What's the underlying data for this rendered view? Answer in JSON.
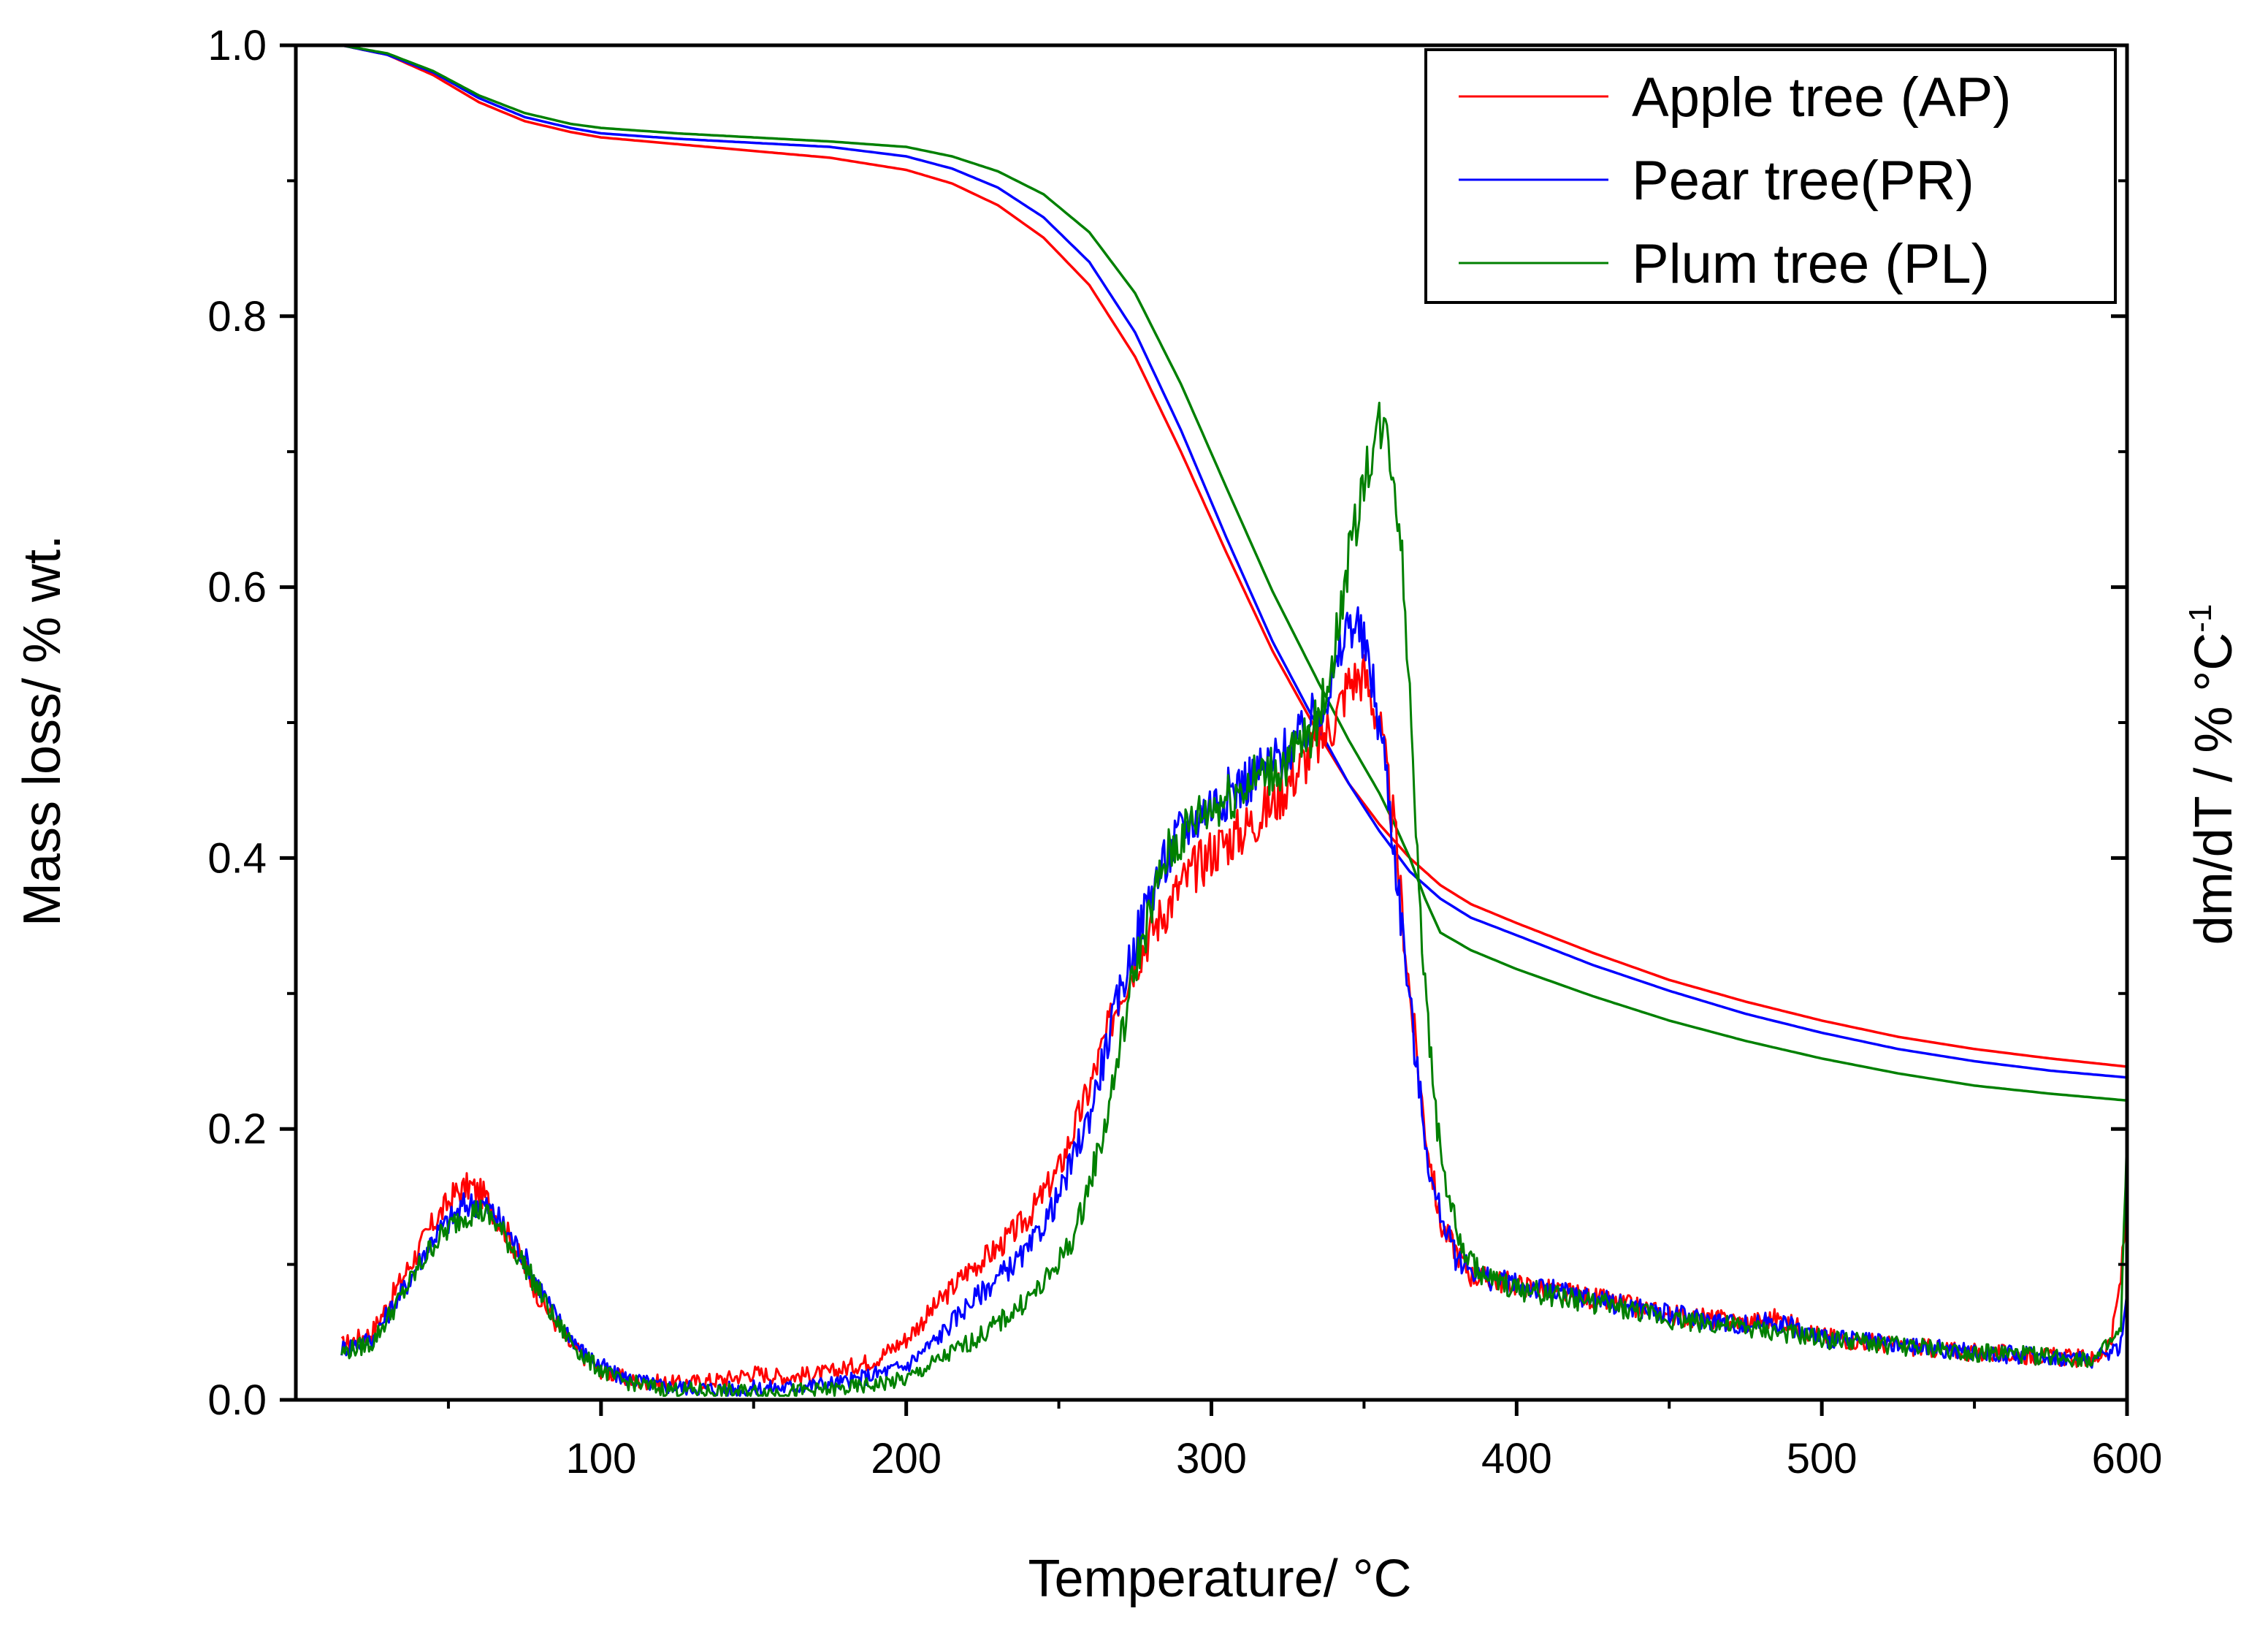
{
  "chart_data": {
    "type": "line",
    "xlabel": "Temperature/ °C",
    "ylabel_left": "Mass loss/ % wt.",
    "ylabel_right_main": "dm/dT / % °C",
    "ylabel_right_sup": "-1",
    "xlim": [
      0,
      600
    ],
    "ylim": [
      0,
      1.0
    ],
    "x_ticks": [
      100,
      200,
      300,
      400,
      500,
      600
    ],
    "y_ticks": [
      0.0,
      0.2,
      0.4,
      0.6,
      0.8,
      1.0
    ],
    "x_tick_labels": [
      "100",
      "200",
      "300",
      "400",
      "500",
      "600"
    ],
    "y_tick_labels": [
      "0.0",
      "0.2",
      "0.4",
      "0.6",
      "0.8",
      "1.0"
    ],
    "grid": false,
    "legend_position": "top-right",
    "series": [
      {
        "name": "Apple tree (AP)",
        "color": "#ff0000",
        "mass_curve": [
          [
            15,
            1.0
          ],
          [
            30,
            0.993
          ],
          [
            45,
            0.978
          ],
          [
            60,
            0.958
          ],
          [
            75,
            0.944
          ],
          [
            90,
            0.936
          ],
          [
            100,
            0.932
          ],
          [
            125,
            0.927
          ],
          [
            150,
            0.922
          ],
          [
            175,
            0.917
          ],
          [
            200,
            0.908
          ],
          [
            215,
            0.898
          ],
          [
            230,
            0.882
          ],
          [
            245,
            0.858
          ],
          [
            260,
            0.823
          ],
          [
            275,
            0.77
          ],
          [
            290,
            0.7
          ],
          [
            305,
            0.625
          ],
          [
            320,
            0.553
          ],
          [
            335,
            0.492
          ],
          [
            345,
            0.455
          ],
          [
            355,
            0.425
          ],
          [
            365,
            0.4
          ],
          [
            375,
            0.38
          ],
          [
            385,
            0.366
          ],
          [
            400,
            0.352
          ],
          [
            425,
            0.33
          ],
          [
            450,
            0.31
          ],
          [
            475,
            0.294
          ],
          [
            500,
            0.28
          ],
          [
            525,
            0.268
          ],
          [
            550,
            0.259
          ],
          [
            575,
            0.252
          ],
          [
            600,
            0.246
          ]
        ],
        "derivative_curve": [
          [
            15,
            0.04
          ],
          [
            25,
            0.05
          ],
          [
            35,
            0.09
          ],
          [
            45,
            0.13
          ],
          [
            52,
            0.152
          ],
          [
            57,
            0.158
          ],
          [
            62,
            0.15
          ],
          [
            70,
            0.12
          ],
          [
            80,
            0.075
          ],
          [
            90,
            0.04
          ],
          [
            100,
            0.022
          ],
          [
            110,
            0.014
          ],
          [
            125,
            0.012
          ],
          [
            140,
            0.015
          ],
          [
            150,
            0.02
          ],
          [
            160,
            0.017
          ],
          [
            175,
            0.02
          ],
          [
            190,
            0.03
          ],
          [
            200,
            0.045
          ],
          [
            210,
            0.07
          ],
          [
            220,
            0.095
          ],
          [
            230,
            0.112
          ],
          [
            240,
            0.135
          ],
          [
            250,
            0.17
          ],
          [
            260,
            0.23
          ],
          [
            270,
            0.3
          ],
          [
            280,
            0.345
          ],
          [
            290,
            0.38
          ],
          [
            300,
            0.405
          ],
          [
            310,
            0.42
          ],
          [
            320,
            0.44
          ],
          [
            330,
            0.47
          ],
          [
            340,
            0.5
          ],
          [
            345,
            0.53
          ],
          [
            350,
            0.535
          ],
          [
            355,
            0.5
          ],
          [
            360,
            0.42
          ],
          [
            365,
            0.3
          ],
          [
            370,
            0.2
          ],
          [
            375,
            0.13
          ],
          [
            385,
            0.092
          ],
          [
            400,
            0.085
          ],
          [
            425,
            0.075
          ],
          [
            450,
            0.063
          ],
          [
            475,
            0.057
          ],
          [
            485,
            0.06
          ],
          [
            500,
            0.047
          ],
          [
            525,
            0.04
          ],
          [
            550,
            0.035
          ],
          [
            575,
            0.032
          ],
          [
            590,
            0.03
          ],
          [
            595,
            0.045
          ],
          [
            598,
            0.09
          ],
          [
            600,
            0.15
          ]
        ]
      },
      {
        "name": "Pear tree(PR)",
        "color": "#0000ff",
        "mass_curve": [
          [
            15,
            1.0
          ],
          [
            30,
            0.993
          ],
          [
            45,
            0.98
          ],
          [
            60,
            0.961
          ],
          [
            75,
            0.947
          ],
          [
            90,
            0.939
          ],
          [
            100,
            0.935
          ],
          [
            125,
            0.931
          ],
          [
            150,
            0.928
          ],
          [
            175,
            0.925
          ],
          [
            200,
            0.918
          ],
          [
            215,
            0.909
          ],
          [
            230,
            0.895
          ],
          [
            245,
            0.873
          ],
          [
            260,
            0.84
          ],
          [
            275,
            0.788
          ],
          [
            290,
            0.716
          ],
          [
            305,
            0.636
          ],
          [
            320,
            0.56
          ],
          [
            335,
            0.496
          ],
          [
            345,
            0.455
          ],
          [
            355,
            0.42
          ],
          [
            365,
            0.39
          ],
          [
            375,
            0.37
          ],
          [
            385,
            0.356
          ],
          [
            400,
            0.343
          ],
          [
            425,
            0.321
          ],
          [
            450,
            0.302
          ],
          [
            475,
            0.285
          ],
          [
            500,
            0.271
          ],
          [
            525,
            0.259
          ],
          [
            550,
            0.25
          ],
          [
            575,
            0.243
          ],
          [
            600,
            0.238
          ]
        ],
        "derivative_curve": [
          [
            15,
            0.038
          ],
          [
            25,
            0.045
          ],
          [
            35,
            0.08
          ],
          [
            45,
            0.12
          ],
          [
            55,
            0.143
          ],
          [
            60,
            0.146
          ],
          [
            65,
            0.138
          ],
          [
            75,
            0.105
          ],
          [
            85,
            0.062
          ],
          [
            95,
            0.033
          ],
          [
            105,
            0.018
          ],
          [
            120,
            0.01
          ],
          [
            140,
            0.008
          ],
          [
            160,
            0.009
          ],
          [
            180,
            0.013
          ],
          [
            200,
            0.025
          ],
          [
            210,
            0.045
          ],
          [
            220,
            0.07
          ],
          [
            230,
            0.09
          ],
          [
            240,
            0.11
          ],
          [
            250,
            0.15
          ],
          [
            260,
            0.21
          ],
          [
            270,
            0.3
          ],
          [
            280,
            0.375
          ],
          [
            290,
            0.42
          ],
          [
            300,
            0.44
          ],
          [
            310,
            0.455
          ],
          [
            320,
            0.47
          ],
          [
            330,
            0.49
          ],
          [
            340,
            0.53
          ],
          [
            345,
            0.575
          ],
          [
            348,
            0.57
          ],
          [
            352,
            0.54
          ],
          [
            357,
            0.47
          ],
          [
            362,
            0.36
          ],
          [
            367,
            0.25
          ],
          [
            372,
            0.16
          ],
          [
            380,
            0.105
          ],
          [
            390,
            0.09
          ],
          [
            400,
            0.085
          ],
          [
            425,
            0.075
          ],
          [
            450,
            0.063
          ],
          [
            475,
            0.055
          ],
          [
            485,
            0.058
          ],
          [
            500,
            0.046
          ],
          [
            525,
            0.04
          ],
          [
            550,
            0.035
          ],
          [
            575,
            0.032
          ],
          [
            590,
            0.03
          ],
          [
            598,
            0.04
          ],
          [
            600,
            0.08
          ]
        ]
      },
      {
        "name": "Plum tree (PL)",
        "color": "#008000",
        "mass_curve": [
          [
            15,
            1.0
          ],
          [
            30,
            0.994
          ],
          [
            45,
            0.981
          ],
          [
            60,
            0.963
          ],
          [
            75,
            0.95
          ],
          [
            90,
            0.942
          ],
          [
            100,
            0.939
          ],
          [
            125,
            0.935
          ],
          [
            150,
            0.932
          ],
          [
            175,
            0.929
          ],
          [
            200,
            0.925
          ],
          [
            215,
            0.918
          ],
          [
            230,
            0.907
          ],
          [
            245,
            0.89
          ],
          [
            260,
            0.862
          ],
          [
            275,
            0.817
          ],
          [
            290,
            0.75
          ],
          [
            305,
            0.673
          ],
          [
            320,
            0.597
          ],
          [
            335,
            0.53
          ],
          [
            345,
            0.487
          ],
          [
            355,
            0.448
          ],
          [
            360,
            0.425
          ],
          [
            365,
            0.4
          ],
          [
            370,
            0.37
          ],
          [
            375,
            0.345
          ],
          [
            385,
            0.332
          ],
          [
            400,
            0.318
          ],
          [
            425,
            0.298
          ],
          [
            450,
            0.28
          ],
          [
            475,
            0.265
          ],
          [
            500,
            0.252
          ],
          [
            525,
            0.241
          ],
          [
            550,
            0.232
          ],
          [
            575,
            0.226
          ],
          [
            600,
            0.221
          ]
        ],
        "derivative_curve": [
          [
            15,
            0.035
          ],
          [
            25,
            0.042
          ],
          [
            35,
            0.078
          ],
          [
            45,
            0.115
          ],
          [
            55,
            0.137
          ],
          [
            60,
            0.14
          ],
          [
            65,
            0.132
          ],
          [
            75,
            0.1
          ],
          [
            85,
            0.058
          ],
          [
            95,
            0.03
          ],
          [
            105,
            0.015
          ],
          [
            120,
            0.008
          ],
          [
            140,
            0.006
          ],
          [
            160,
            0.006
          ],
          [
            180,
            0.008
          ],
          [
            200,
            0.015
          ],
          [
            215,
            0.035
          ],
          [
            225,
            0.048
          ],
          [
            235,
            0.065
          ],
          [
            245,
            0.085
          ],
          [
            255,
            0.12
          ],
          [
            265,
            0.2
          ],
          [
            275,
            0.32
          ],
          [
            285,
            0.4
          ],
          [
            295,
            0.43
          ],
          [
            305,
            0.445
          ],
          [
            315,
            0.46
          ],
          [
            325,
            0.47
          ],
          [
            335,
            0.5
          ],
          [
            340,
            0.55
          ],
          [
            345,
            0.62
          ],
          [
            350,
            0.68
          ],
          [
            355,
            0.72
          ],
          [
            358,
            0.71
          ],
          [
            362,
            0.64
          ],
          [
            366,
            0.48
          ],
          [
            370,
            0.3
          ],
          [
            375,
            0.18
          ],
          [
            382,
            0.11
          ],
          [
            390,
            0.09
          ],
          [
            400,
            0.082
          ],
          [
            425,
            0.072
          ],
          [
            450,
            0.06
          ],
          [
            475,
            0.053
          ],
          [
            500,
            0.045
          ],
          [
            525,
            0.04
          ],
          [
            550,
            0.035
          ],
          [
            575,
            0.032
          ],
          [
            590,
            0.03
          ],
          [
            598,
            0.05
          ],
          [
            600,
            0.2
          ]
        ]
      }
    ]
  }
}
